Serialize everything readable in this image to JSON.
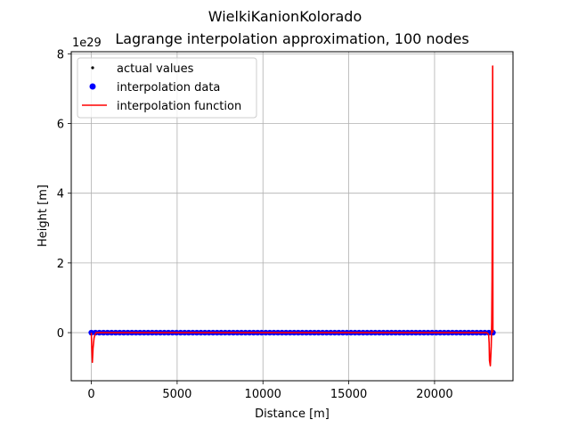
{
  "chart_data": {
    "type": "line",
    "title": "WielkiKanionKolorado",
    "subtitle": "Lagrange interpolation approximation, 100 nodes",
    "xlabel": "Distance [m]",
    "ylabel": "Height [m]",
    "y_scale_label": "1e29",
    "xlim": [
      -1170,
      24570
    ],
    "ylim": [
      -1.38,
      8.06
    ],
    "x_ticks": [
      0,
      5000,
      10000,
      15000,
      20000
    ],
    "x_tick_labels": [
      "0",
      "5000",
      "10000",
      "15000",
      "20000"
    ],
    "y_ticks": [
      0,
      2,
      4,
      6,
      8
    ],
    "y_tick_labels": [
      "0",
      "2",
      "4",
      "6",
      "8"
    ],
    "grid": true,
    "legend_position": "top-left",
    "legend": [
      "actual values",
      "interpolation data",
      "interpolation function"
    ],
    "colors": {
      "actual_values": "#000000",
      "interpolation_data": "#0000ff",
      "interpolation_function": "#ff0000",
      "grid": "#b0b0b0"
    },
    "series": [
      {
        "name": "actual values",
        "style": "points",
        "x_range": [
          0,
          23400
        ],
        "count": 512,
        "y_constant": 0
      },
      {
        "name": "interpolation data",
        "style": "markers",
        "x_range": [
          0,
          23400
        ],
        "count": 100,
        "y_constant": 0
      },
      {
        "name": "interpolation function",
        "style": "line",
        "x": [
          0,
          20,
          60,
          100,
          160,
          220,
          280,
          400,
          1000,
          5000,
          10000,
          15000,
          20000,
          22800,
          23050,
          23150,
          23180,
          23200,
          23250,
          23300,
          23330,
          23350,
          23370,
          23380,
          23385,
          23400
        ],
        "y": [
          0,
          -0.35,
          -0.85,
          -0.45,
          -0.15,
          -0.05,
          0,
          0,
          0,
          0,
          0,
          0,
          0,
          0,
          0,
          -0.05,
          -0.3,
          -0.8,
          -0.95,
          -0.4,
          0.3,
          1.5,
          4.0,
          6.5,
          7.65,
          0
        ]
      }
    ]
  }
}
